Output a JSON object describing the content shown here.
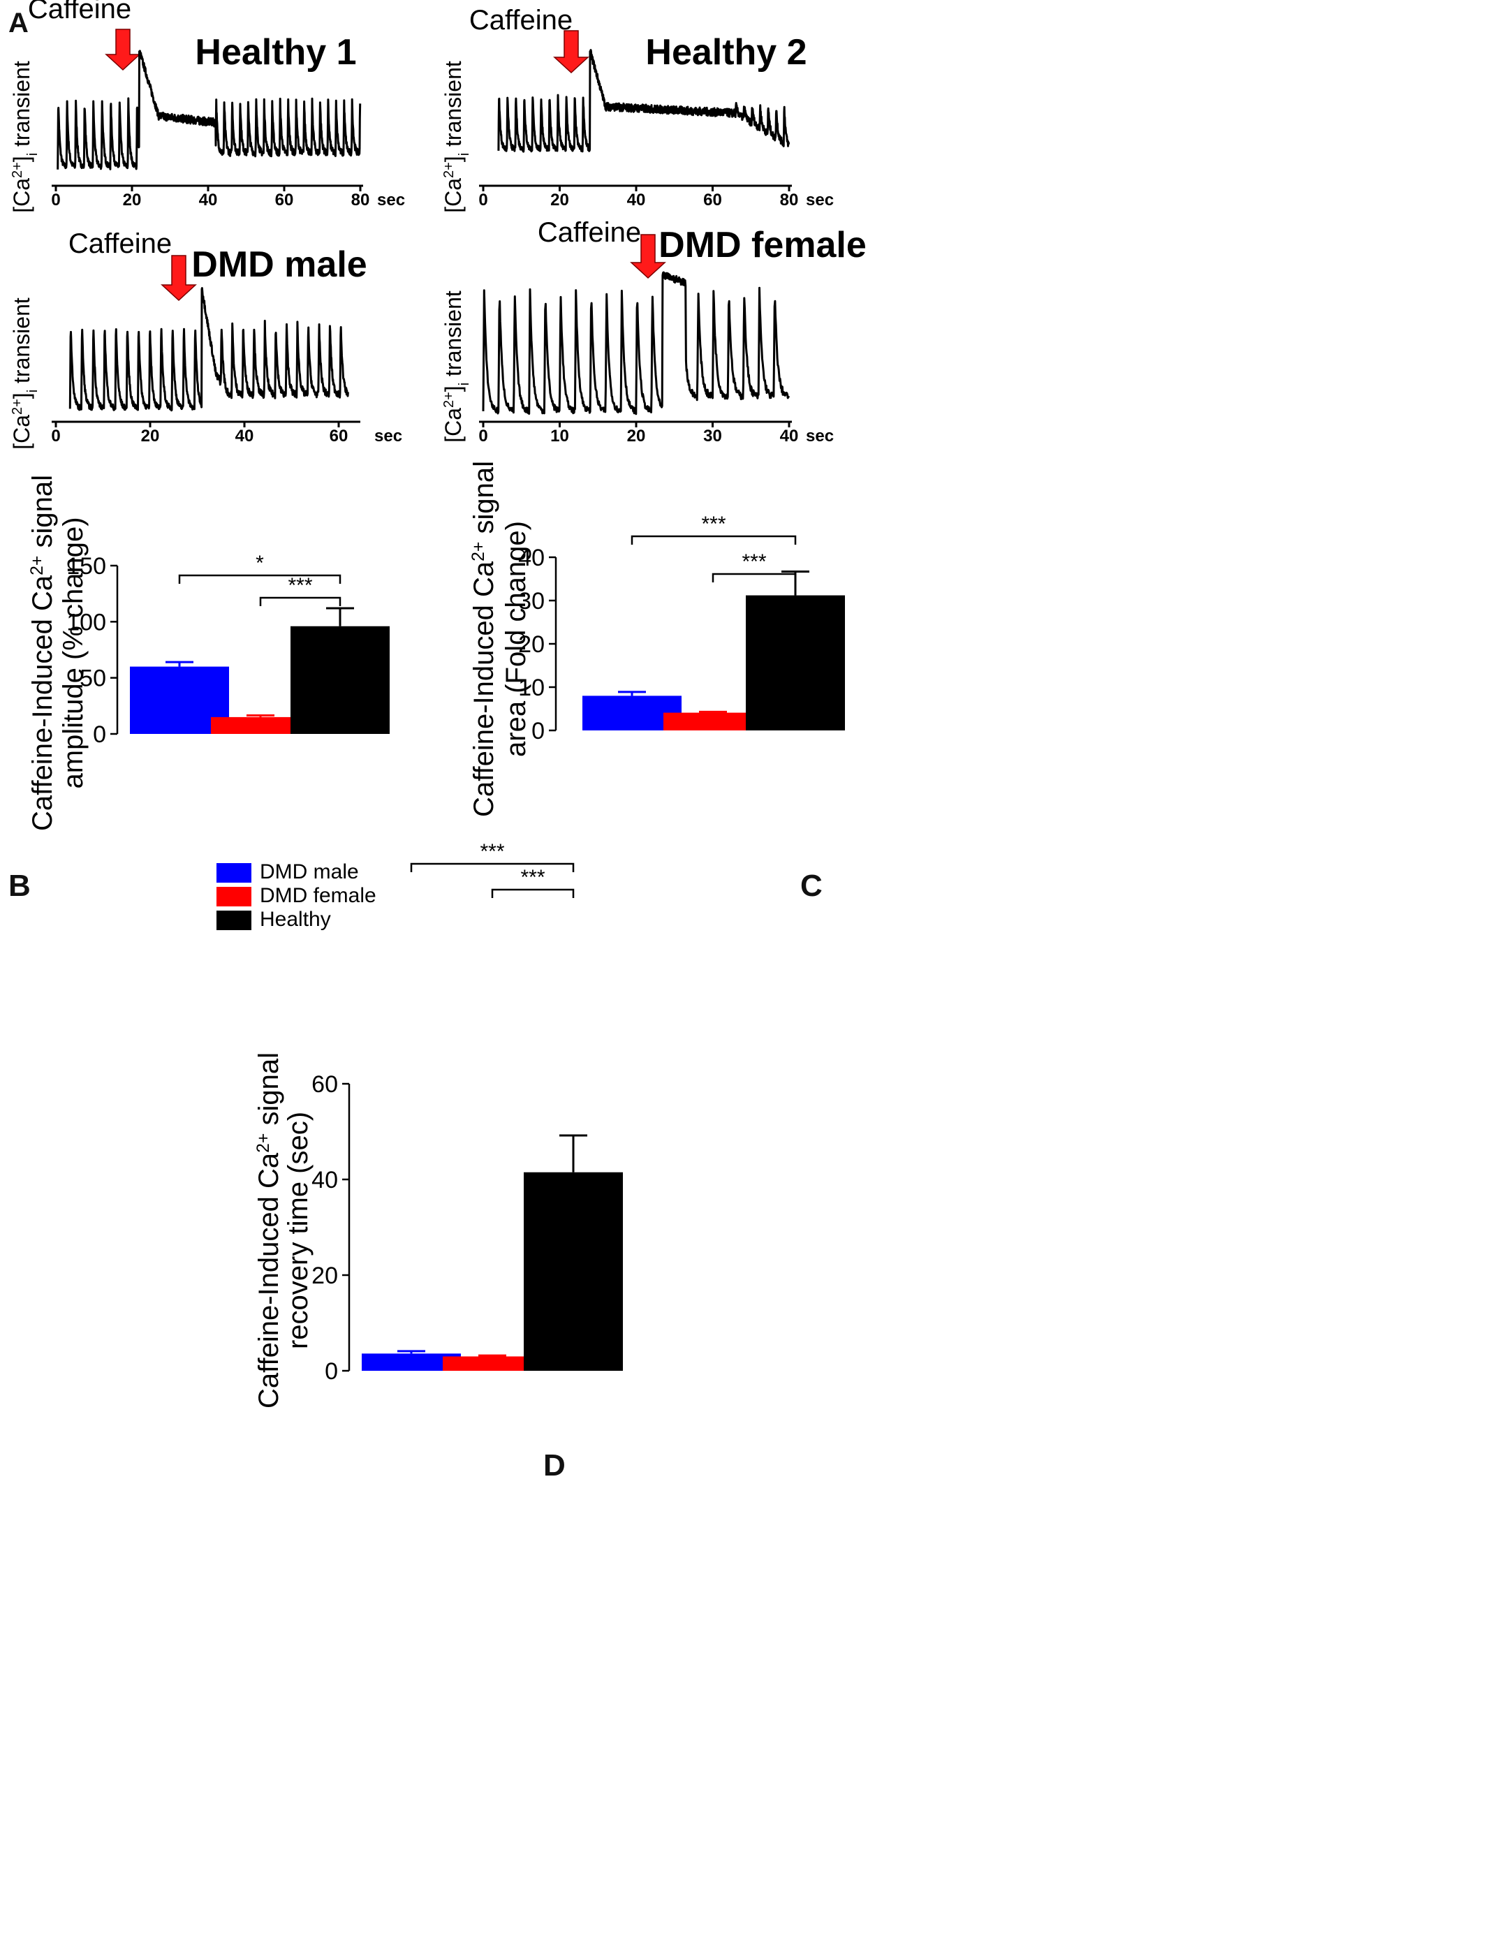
{
  "panel_labels": {
    "A": "A",
    "B": "B",
    "C": "C",
    "D": "D"
  },
  "colors": {
    "dmd_male": "#0000ff",
    "dmd_female": "#ff0000",
    "healthy": "#000000",
    "arrow": "#ff1a1a"
  },
  "chart_data": [
    {
      "type": "line",
      "title": "Healthy 1",
      "title_color": "#000000",
      "annotation": "Caffeine",
      "caffeine_time": 20,
      "ylabel": "[Ca2+]i transient",
      "x_unit": "sec",
      "x_ticks": [
        0,
        20,
        40,
        60,
        80
      ],
      "xlim": [
        0,
        80
      ],
      "x_start": 0.5,
      "x_end": 80,
      "peak_time": 22,
      "peak_duration": 5,
      "period_before": 2.3,
      "period_after": 2.1,
      "baseline_level": 0.12,
      "spike_level": 0.62,
      "plateau_level": 0.45,
      "recovery_time": 42,
      "series": [
        {
          "values_description_unused": ""
        }
      ]
    },
    {
      "type": "line",
      "title": "Healthy 2",
      "title_color": "#000000",
      "annotation": "Caffeine",
      "caffeine_time": 21,
      "ylabel": "[Ca2+]i transient",
      "x_unit": "sec",
      "x_ticks": [
        0,
        20,
        40,
        60,
        80
      ],
      "xlim": [
        0,
        80
      ],
      "x_start": 4,
      "x_end": 80,
      "peak_time": 28,
      "peak_duration": 4,
      "period_before": 2.2,
      "period_after": 2.1,
      "baseline_level": 0.25,
      "spike_level": 0.66,
      "plateau_level": 0.52,
      "recovery_time": 66,
      "series": [
        {
          "values_description_unused": ""
        }
      ]
    },
    {
      "type": "line",
      "title": "DMD male",
      "title_color": "#1a1aff",
      "annotation": "Caffeine",
      "caffeine_time": 27,
      "ylabel": "[Ca2+]i transient",
      "x_unit": "sec",
      "x_ticks": [
        0,
        20,
        40,
        60
      ],
      "xlim": [
        0,
        64
      ],
      "x_start": 3,
      "x_end": 62,
      "peak_time": 31,
      "peak_duration": 3,
      "period_before": 2.4,
      "period_after": 2.3,
      "baseline_level": 0.08,
      "spike_level": 0.72,
      "plateau_level": 0.28,
      "recovery_time": 35,
      "series": [
        {
          "values_description_unused": ""
        }
      ]
    },
    {
      "type": "line",
      "title": "DMD female",
      "title_color": "#ff1a1a",
      "annotation": "Caffeine",
      "caffeine_time": 21,
      "ylabel": "[Ca2+]i transient",
      "x_unit": "sec",
      "x_ticks": [
        0,
        10,
        20,
        30,
        40
      ],
      "xlim": [
        0,
        40
      ],
      "x_start": 0,
      "x_end": 40,
      "peak_time": 23.5,
      "peak_duration": 3,
      "period_before": 2.0,
      "period_after": 2.0,
      "baseline_level": 0.05,
      "spike_level": 0.88,
      "plateau_level": 0.88,
      "recovery_time": 26,
      "series": [
        {
          "values_description_unused": ""
        }
      ]
    },
    {
      "type": "bar",
      "categories": [
        "DMD male",
        "DMD female",
        "Healthy"
      ],
      "values": [
        60,
        15,
        96
      ],
      "errors": [
        4,
        1.5,
        16
      ],
      "ylim": [
        0,
        150
      ],
      "y_ticks": [
        0,
        50,
        100,
        150
      ],
      "ylabel_line1": "Caffeine-Induced Ca2+ signal",
      "ylabel_line2": "amplitude (% change)",
      "legend": [
        "DMD male",
        "DMD female",
        "Healthy"
      ],
      "significance": [
        {
          "from": 0,
          "to": 2,
          "label": "*"
        },
        {
          "from": 1,
          "to": 2,
          "label": "***"
        }
      ]
    },
    {
      "type": "bar",
      "categories": [
        "DMD male",
        "DMD female",
        "Healthy"
      ],
      "values": [
        8,
        4.1,
        31.2
      ],
      "errors": [
        0.9,
        0.2,
        5.5
      ],
      "ylim": [
        0,
        40
      ],
      "y_ticks": [
        0,
        10,
        20,
        30,
        40
      ],
      "ylabel_line1": "Caffeine-Induced Ca2+ signal",
      "ylabel_line2": "area (Fold change)",
      "significance": [
        {
          "from": 0,
          "to": 2,
          "label": "***"
        },
        {
          "from": 1,
          "to": 2,
          "label": "***"
        }
      ]
    },
    {
      "type": "bar",
      "categories": [
        "DMD male",
        "DMD female",
        "Healthy"
      ],
      "values": [
        3.6,
        3.0,
        41.5
      ],
      "errors": [
        0.5,
        0.2,
        7.7
      ],
      "ylim": [
        0,
        60
      ],
      "y_ticks": [
        0,
        20,
        40,
        60
      ],
      "ylabel_line1": "Caffeine-Induced Ca2+ signal",
      "ylabel_line2": "recovery time (sec)",
      "significance": [
        {
          "from": 0,
          "to": 2,
          "label": "***"
        },
        {
          "from": 1,
          "to": 2,
          "label": "***"
        }
      ]
    }
  ]
}
